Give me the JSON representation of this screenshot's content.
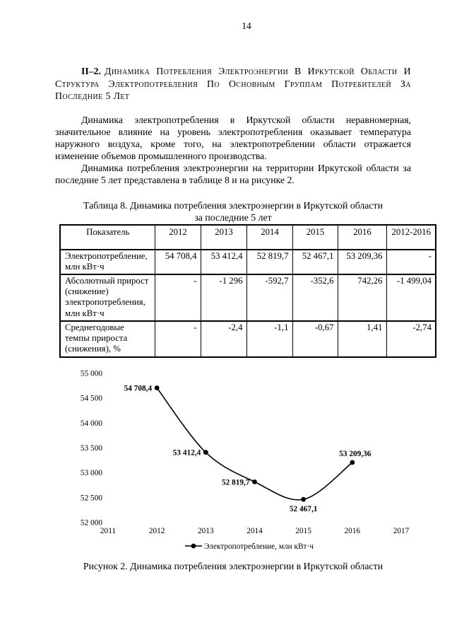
{
  "page": {
    "number": "14"
  },
  "heading": {
    "prefix": "II–2.",
    "text": "Динамика Потребления Электроэнергии В Иркутской Области И Структура Электропотребления По Основным Группам Потребителей За Последние 5 Лет"
  },
  "paragraphs": [
    "Динамика электропотребления в Иркутской области неравномерная, значительное влияние на уровень электропотребления оказывает температура наружного воздуха, кроме того, на электропотреблении области отражается изменение объемов промышленного производства.",
    "Динамика потребления электроэнергии на территории Иркутской области за последние 5 лет представлена в таблице 8 и на рисунке 2."
  ],
  "table": {
    "caption_line1": "Таблица 8. Динамика потребления электроэнергии в Иркутской области",
    "caption_line2": "за последние 5 лет",
    "headers": [
      "Показатель",
      "2012",
      "2013",
      "2014",
      "2015",
      "2016",
      "2012-2016"
    ],
    "rows": [
      {
        "label": "Электропотребление, млн кВт·ч",
        "values": [
          "54 708,4",
          "53 412,4",
          "52 819,7",
          "52 467,1",
          "53 209,36",
          "-"
        ]
      },
      {
        "label": "Абсолютный прирост (снижение) электропотребления, млн кВт·ч",
        "values": [
          "-",
          "-1 296",
          "-592,7",
          "-352,6",
          "742,26",
          "-1 499,04"
        ]
      },
      {
        "label": "Среднегодовые темпы прироста (снижения), %",
        "values": [
          "-",
          "-2,4",
          "-1,1",
          "-0,67",
          "1,41",
          "-2,74"
        ]
      }
    ]
  },
  "chart_data": {
    "type": "line",
    "title": "",
    "x": [
      2012,
      2013,
      2014,
      2015,
      2016
    ],
    "series": [
      {
        "name": "Электропотребление, млн кВт·ч",
        "values": [
          54708.4,
          53412.4,
          52819.7,
          52467.1,
          53209.36
        ]
      }
    ],
    "point_labels": [
      "54 708,4",
      "53 412,4",
      "52 819,7",
      "52 467,1",
      "53 209,36"
    ],
    "label_placements": [
      "left",
      "left",
      "left",
      "below",
      "above"
    ],
    "x_axis_ticks": [
      "2011",
      "2012",
      "2013",
      "2014",
      "2015",
      "2016",
      "2017"
    ],
    "y_axis_ticks": [
      "55 000",
      "54 500",
      "54 000",
      "53 500",
      "53 000",
      "52 500",
      "52 000"
    ],
    "xlim": [
      2011,
      2017
    ],
    "ylim": [
      52000,
      55000
    ],
    "grid": false,
    "smoothed": true,
    "legend": "Электропотребление, млн кВт·ч",
    "legend_position": "bottom",
    "line_color": "#000000"
  },
  "figure_caption": "Рисунок 2. Динамика потребления электроэнергии в Иркутской области"
}
